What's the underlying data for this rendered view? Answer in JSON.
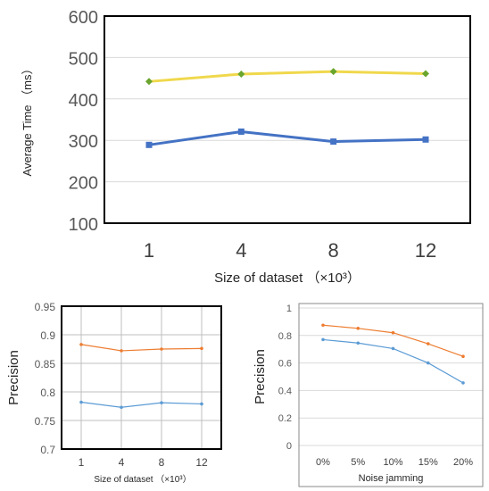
{
  "chart_data": [
    {
      "type": "line",
      "title": "",
      "xlabel": "Size of dataset （×10³）",
      "ylabel": "Average Time （ms）",
      "categories": [
        "1",
        "4",
        "8",
        "12"
      ],
      "ylim": [
        100,
        600
      ],
      "yticks": [
        "100",
        "200",
        "300",
        "400",
        "500",
        "600"
      ],
      "grid": true,
      "legend": "none",
      "series": [
        {
          "values": [
            442,
            460,
            466,
            461
          ],
          "color": "#f0d84c",
          "marker": "diamond",
          "marker_color": "#6aa52e"
        },
        {
          "values": [
            289,
            321,
            297,
            302
          ],
          "color": "#4472c4",
          "marker": "square",
          "marker_color": "#4472c4"
        }
      ]
    },
    {
      "type": "line",
      "title": "",
      "xlabel": "Size of dataset （×10³）",
      "ylabel": "Precision",
      "categories": [
        "1",
        "4",
        "8",
        "12"
      ],
      "ylim": [
        0.7,
        0.95
      ],
      "yticks": [
        "0.7",
        "0.75",
        "0.8",
        "0.85",
        "0.9",
        "0.95"
      ],
      "grid": true,
      "legend": "none",
      "series": [
        {
          "values": [
            0.883,
            0.872,
            0.875,
            0.876
          ],
          "color": "#ed7d31",
          "marker": "circle",
          "marker_color": "#ed7d31"
        },
        {
          "values": [
            0.782,
            0.773,
            0.781,
            0.779
          ],
          "color": "#5b9bd5",
          "marker": "circle",
          "marker_color": "#5b9bd5"
        }
      ]
    },
    {
      "type": "line",
      "title": "",
      "xlabel": "Noise jamming",
      "ylabel": "Precision",
      "categories": [
        "0%",
        "5%",
        "10%",
        "15%",
        "20%"
      ],
      "ylim": [
        0,
        1
      ],
      "yticks": [
        "0",
        "0.2",
        "0.4",
        "0.6",
        "0.8",
        "1"
      ],
      "grid": true,
      "legend": "none",
      "series": [
        {
          "values": [
            0.875,
            0.852,
            0.82,
            0.74,
            0.648
          ],
          "color": "#ed7d31",
          "marker": "circle",
          "marker_color": "#ed7d31"
        },
        {
          "values": [
            0.77,
            0.745,
            0.705,
            0.6,
            0.455
          ],
          "color": "#5b9bd5",
          "marker": "circle",
          "marker_color": "#5b9bd5"
        }
      ]
    }
  ]
}
